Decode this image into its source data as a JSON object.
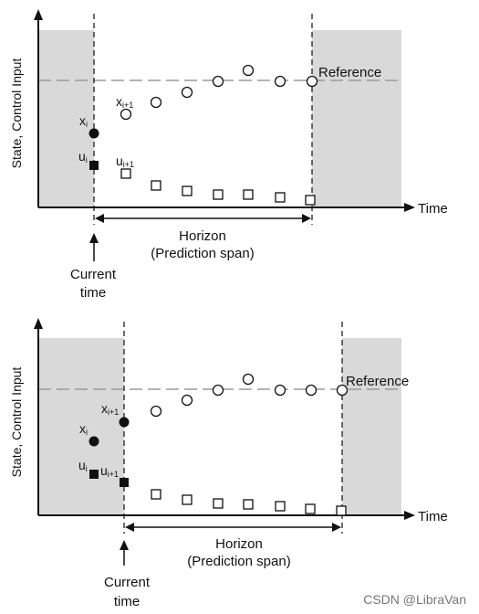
{
  "panels": [
    {
      "y_axis_label": "State, Control Input",
      "x_axis_label": "Time",
      "reference_label": "Reference",
      "horizon_label_line1": "Horizon",
      "horizon_label_line2": "(Prediction span)",
      "current_time_line1": "Current",
      "current_time_line2": "time",
      "x_label": "x",
      "x_sub": "i",
      "x_next_label": "x",
      "x_next_sub": "i+1",
      "u_label": "u",
      "u_sub": "i",
      "u_next_label": "u",
      "u_next_sub": "i+1"
    },
    {
      "y_axis_label": "State, Control Input",
      "x_axis_label": "Time",
      "reference_label": "Reference",
      "horizon_label_line1": "Horizon",
      "horizon_label_line2": "(Prediction span)",
      "current_time_line1": "Current",
      "current_time_line2": "time",
      "x_label": "x",
      "x_sub": "i",
      "x_next_label": "x",
      "x_next_sub": "i+1",
      "u_label": "u",
      "u_sub": "i",
      "u_next_label": "u",
      "u_next_sub": "i+1"
    }
  ],
  "watermark": "CSDN @LibraVan",
  "colors": {
    "shade": "#d9d9d9",
    "reference_line": "#9a9a9a",
    "ink": "#111111"
  }
}
